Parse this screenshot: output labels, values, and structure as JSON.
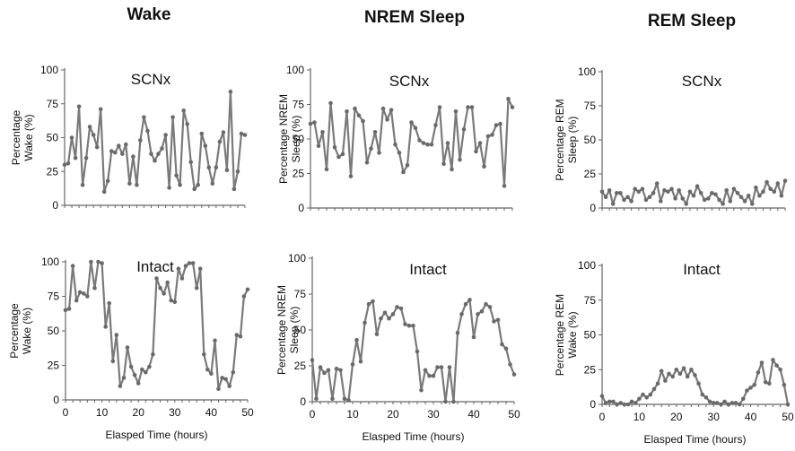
{
  "figure": {
    "columns": [
      "Wake",
      "NREM Sleep",
      "REM Sleep"
    ]
  },
  "chart_data": [
    {
      "id": "wake-scnx",
      "type": "line",
      "panel_label": "SCNx",
      "ylabel_lines": [
        "Percentage",
        "Wake (%)"
      ],
      "xlabel": "",
      "ylim": [
        0,
        100
      ],
      "yticks": [
        "0",
        "25",
        "50",
        "75",
        "100"
      ],
      "xlim": [
        0,
        50
      ],
      "xticks": [],
      "x": [
        0,
        1,
        2,
        3,
        4,
        5,
        6,
        7,
        8,
        9,
        10,
        11,
        12,
        13,
        14,
        15,
        16,
        17,
        18,
        19,
        20,
        21,
        22,
        23,
        24,
        25,
        26,
        27,
        28,
        29,
        30,
        31,
        32,
        33,
        34,
        35,
        36,
        37,
        38,
        39,
        40,
        41,
        42,
        43,
        44,
        45,
        46,
        47,
        48,
        49,
        50
      ],
      "values": [
        30,
        31,
        50,
        35,
        73,
        15,
        35,
        58,
        52,
        43,
        71,
        10,
        18,
        40,
        39,
        44,
        38,
        45,
        16,
        36,
        15,
        48,
        65,
        55,
        38,
        33,
        38,
        42,
        52,
        13,
        65,
        22,
        15,
        70,
        60,
        32,
        12,
        15,
        53,
        44,
        28,
        16,
        28,
        47,
        54,
        26,
        84,
        12,
        25,
        53,
        52
      ]
    },
    {
      "id": "wake-intact",
      "type": "line",
      "panel_label": "Intact",
      "ylabel_lines": [
        "Percentage",
        "Wake (%)"
      ],
      "xlabel": "Elasped Time (hours)",
      "ylim": [
        0,
        100
      ],
      "yticks": [
        "0",
        "25",
        "50",
        "75",
        "100"
      ],
      "xlim": [
        0,
        50
      ],
      "xticks": [
        "0",
        "10",
        "20",
        "30",
        "40",
        "50"
      ],
      "x": [
        0,
        1,
        2,
        3,
        4,
        5,
        6,
        7,
        8,
        9,
        10,
        11,
        12,
        13,
        14,
        15,
        16,
        17,
        18,
        19,
        20,
        21,
        22,
        23,
        24,
        25,
        26,
        27,
        28,
        29,
        30,
        31,
        32,
        33,
        34,
        35,
        36,
        37,
        38,
        39,
        40,
        41,
        42,
        43,
        44,
        45,
        46,
        47,
        48,
        49,
        50
      ],
      "values": [
        65,
        66,
        97,
        72,
        78,
        77,
        75,
        100,
        81,
        100,
        99,
        53,
        70,
        28,
        47,
        10,
        16,
        38,
        24,
        18,
        12,
        22,
        20,
        24,
        33,
        88,
        81,
        77,
        85,
        72,
        71,
        95,
        88,
        97,
        99,
        99,
        81,
        95,
        33,
        22,
        19,
        43,
        8,
        16,
        15,
        10,
        20,
        47,
        46,
        75,
        80
      ]
    },
    {
      "id": "nrem-scnx",
      "type": "line",
      "panel_label": "SCNx",
      "ylabel_lines": [
        "Percentage NREM",
        "Sleep (%)"
      ],
      "xlabel": "",
      "ylim": [
        0,
        100
      ],
      "yticks": [
        "0",
        "25",
        "50",
        "75",
        "100"
      ],
      "xlim": [
        0,
        50
      ],
      "xticks": [],
      "x": [
        0,
        1,
        2,
        3,
        4,
        5,
        6,
        7,
        8,
        9,
        10,
        11,
        12,
        13,
        14,
        15,
        16,
        17,
        18,
        19,
        20,
        21,
        22,
        23,
        24,
        25,
        26,
        27,
        28,
        29,
        30,
        31,
        32,
        33,
        34,
        35,
        36,
        37,
        38,
        39,
        40,
        41,
        42,
        43,
        44,
        45,
        46,
        47,
        48,
        49,
        50
      ],
      "values": [
        61,
        62,
        45,
        55,
        28,
        76,
        44,
        37,
        39,
        70,
        23,
        72,
        67,
        63,
        33,
        43,
        55,
        40,
        72,
        64,
        71,
        46,
        40,
        26,
        31,
        62,
        58,
        49,
        47,
        46,
        46,
        60,
        73,
        32,
        47,
        28,
        70,
        35,
        57,
        73,
        73,
        41,
        47,
        30,
        52,
        53,
        60,
        61,
        16,
        79,
        73
      ]
    },
    {
      "id": "nrem-intact",
      "type": "line",
      "panel_label": "Intact",
      "ylabel_lines": [
        "Percentage NREM",
        "Sleep (%)"
      ],
      "xlabel": "Elasped Time (hours)",
      "ylim": [
        0,
        100
      ],
      "yticks": [
        "0",
        "25",
        "50",
        "75",
        "100"
      ],
      "xlim": [
        0,
        50
      ],
      "xticks": [
        "0",
        "10",
        "20",
        "30",
        "40",
        "50"
      ],
      "x": [
        0,
        1,
        2,
        3,
        4,
        5,
        6,
        7,
        8,
        9,
        10,
        11,
        12,
        13,
        14,
        15,
        16,
        17,
        18,
        19,
        20,
        21,
        22,
        23,
        24,
        25,
        26,
        27,
        28,
        29,
        30,
        31,
        32,
        33,
        34,
        35,
        36,
        37,
        38,
        39,
        40,
        41,
        42,
        43,
        44,
        45,
        46,
        47,
        48,
        49,
        50
      ],
      "values": [
        29,
        2,
        24,
        20,
        22,
        2,
        23,
        22,
        2,
        1,
        26,
        43,
        28,
        55,
        68,
        70,
        47,
        58,
        62,
        58,
        61,
        66,
        65,
        54,
        53,
        53,
        35,
        8,
        22,
        18,
        18,
        24,
        24,
        0,
        24,
        0,
        48,
        61,
        68,
        71,
        45,
        61,
        63,
        68,
        66,
        56,
        57,
        40,
        37,
        26,
        19
      ]
    },
    {
      "id": "rem-scnx",
      "type": "line",
      "panel_label": "SCNx",
      "ylabel_lines": [
        "Percentage REM",
        "Sleep (%)"
      ],
      "xlabel": "",
      "ylim": [
        0,
        100
      ],
      "yticks": [
        "0",
        "25",
        "50",
        "75",
        "100"
      ],
      "xlim": [
        0,
        50
      ],
      "xticks": [],
      "x": [
        0,
        1,
        2,
        3,
        4,
        5,
        6,
        7,
        8,
        9,
        10,
        11,
        12,
        13,
        14,
        15,
        16,
        17,
        18,
        19,
        20,
        21,
        22,
        23,
        24,
        25,
        26,
        27,
        28,
        29,
        30,
        31,
        32,
        33,
        34,
        35,
        36,
        37,
        38,
        39,
        40,
        41,
        42,
        43,
        44,
        45,
        46,
        47,
        48,
        49,
        50
      ],
      "values": [
        12,
        8,
        13,
        3,
        11,
        11,
        6,
        8,
        5,
        14,
        12,
        14,
        6,
        8,
        11,
        18,
        5,
        13,
        12,
        14,
        7,
        13,
        7,
        3,
        12,
        9,
        16,
        11,
        6,
        7,
        11,
        10,
        6,
        3,
        13,
        5,
        14,
        11,
        8,
        5,
        9,
        3,
        15,
        9,
        12,
        19,
        14,
        12,
        18,
        9,
        20
      ]
    },
    {
      "id": "rem-intact",
      "type": "line",
      "panel_label": "Intact",
      "ylabel_lines": [
        "Percentage REM",
        "Wake (%)"
      ],
      "xlabel": "Elasped Time (hours)",
      "ylim": [
        0,
        100
      ],
      "yticks": [
        "0",
        "25",
        "50",
        "75",
        "100"
      ],
      "xlim": [
        0,
        50
      ],
      "xticks": [
        "0",
        "10",
        "20",
        "30",
        "40",
        "50"
      ],
      "x": [
        0,
        1,
        2,
        3,
        4,
        5,
        6,
        7,
        8,
        9,
        10,
        11,
        12,
        13,
        14,
        15,
        16,
        17,
        18,
        19,
        20,
        21,
        22,
        23,
        24,
        25,
        26,
        27,
        28,
        29,
        30,
        31,
        32,
        33,
        34,
        35,
        36,
        37,
        38,
        39,
        40,
        41,
        42,
        43,
        44,
        45,
        46,
        47,
        48,
        49,
        50
      ],
      "values": [
        6,
        1,
        2,
        2,
        0,
        1,
        0,
        0,
        2,
        1,
        4,
        7,
        5,
        7,
        11,
        15,
        24,
        17,
        22,
        20,
        25,
        22,
        26,
        20,
        25,
        21,
        15,
        7,
        5,
        2,
        1,
        1,
        0,
        2,
        0,
        1,
        1,
        0,
        4,
        10,
        12,
        14,
        23,
        30,
        16,
        15,
        32,
        28,
        25,
        14,
        0
      ]
    }
  ]
}
